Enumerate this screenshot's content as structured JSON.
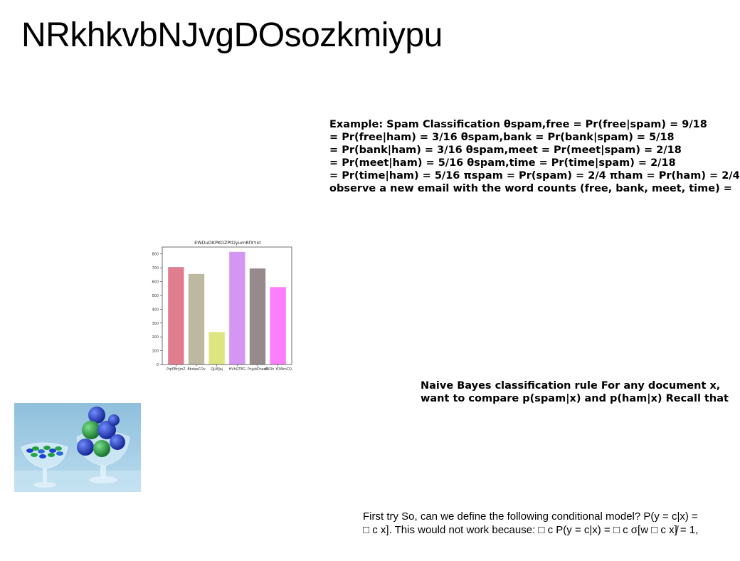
{
  "page": {
    "title": "NRkhkvbNJvgDOsozkmiypu"
  },
  "spam_example": {
    "lines": [
      "Example: Spam Classification θspam,free = Pr(free|spam) = 9/18",
      "= Pr(free|ham) = 3/16 θspam,bank = Pr(bank|spam) = 5/18",
      "= Pr(bank|ham) = 3/16 θspam,meet = Pr(meet|spam) = 2/18",
      "= Pr(meet|ham) = 5/16 θspam,time = Pr(time|spam) = 2/18",
      "= Pr(time|ham) = 5/16 πspam = Pr(spam) = 2/4 πham = Pr(ham) = 2/4",
      "observe a new email with the word counts (free, bank, meet, time) ="
    ]
  },
  "naive_bayes": {
    "lines": [
      "Naive Bayes classification rule For any document x,",
      "want to compare p(spam|x) and p(ham|x) Recall that"
    ]
  },
  "first_try": {
    "lines": [
      "First try So, can we define the following conditional model? P(y = c|x) =",
      "□ c x]. This would not work because: □ c P(y = c|x) = □ c σ[w □ c x]̸ = 1,"
    ]
  },
  "chart_data": {
    "type": "bar",
    "title": "EWDuDKPKOZPtDyumRfXYxt",
    "categories": [
      "PqrPBnJmZ",
      "BbdaeCOv",
      "QjLBJaj",
      "HVhQTEG",
      "PnjabDnzaP",
      "sWOh YOWmCQ"
    ],
    "values": [
      705,
      655,
      235,
      815,
      695,
      560
    ],
    "colors": [
      "#e07e90",
      "#bdb8a0",
      "#dce580",
      "#d595f2",
      "#978a8c",
      "#fb7ffb"
    ],
    "yticks": [
      0,
      100,
      200,
      300,
      400,
      500,
      600,
      700,
      800
    ],
    "ylim": [
      0,
      850
    ],
    "xlabel": "",
    "ylabel": "",
    "grid": false
  },
  "photo": {
    "icon": "candy-bowls-photo",
    "colors": {
      "background": "#a7cfe6",
      "green": "#1f9e3c",
      "blue": "#1c3fd0"
    }
  }
}
